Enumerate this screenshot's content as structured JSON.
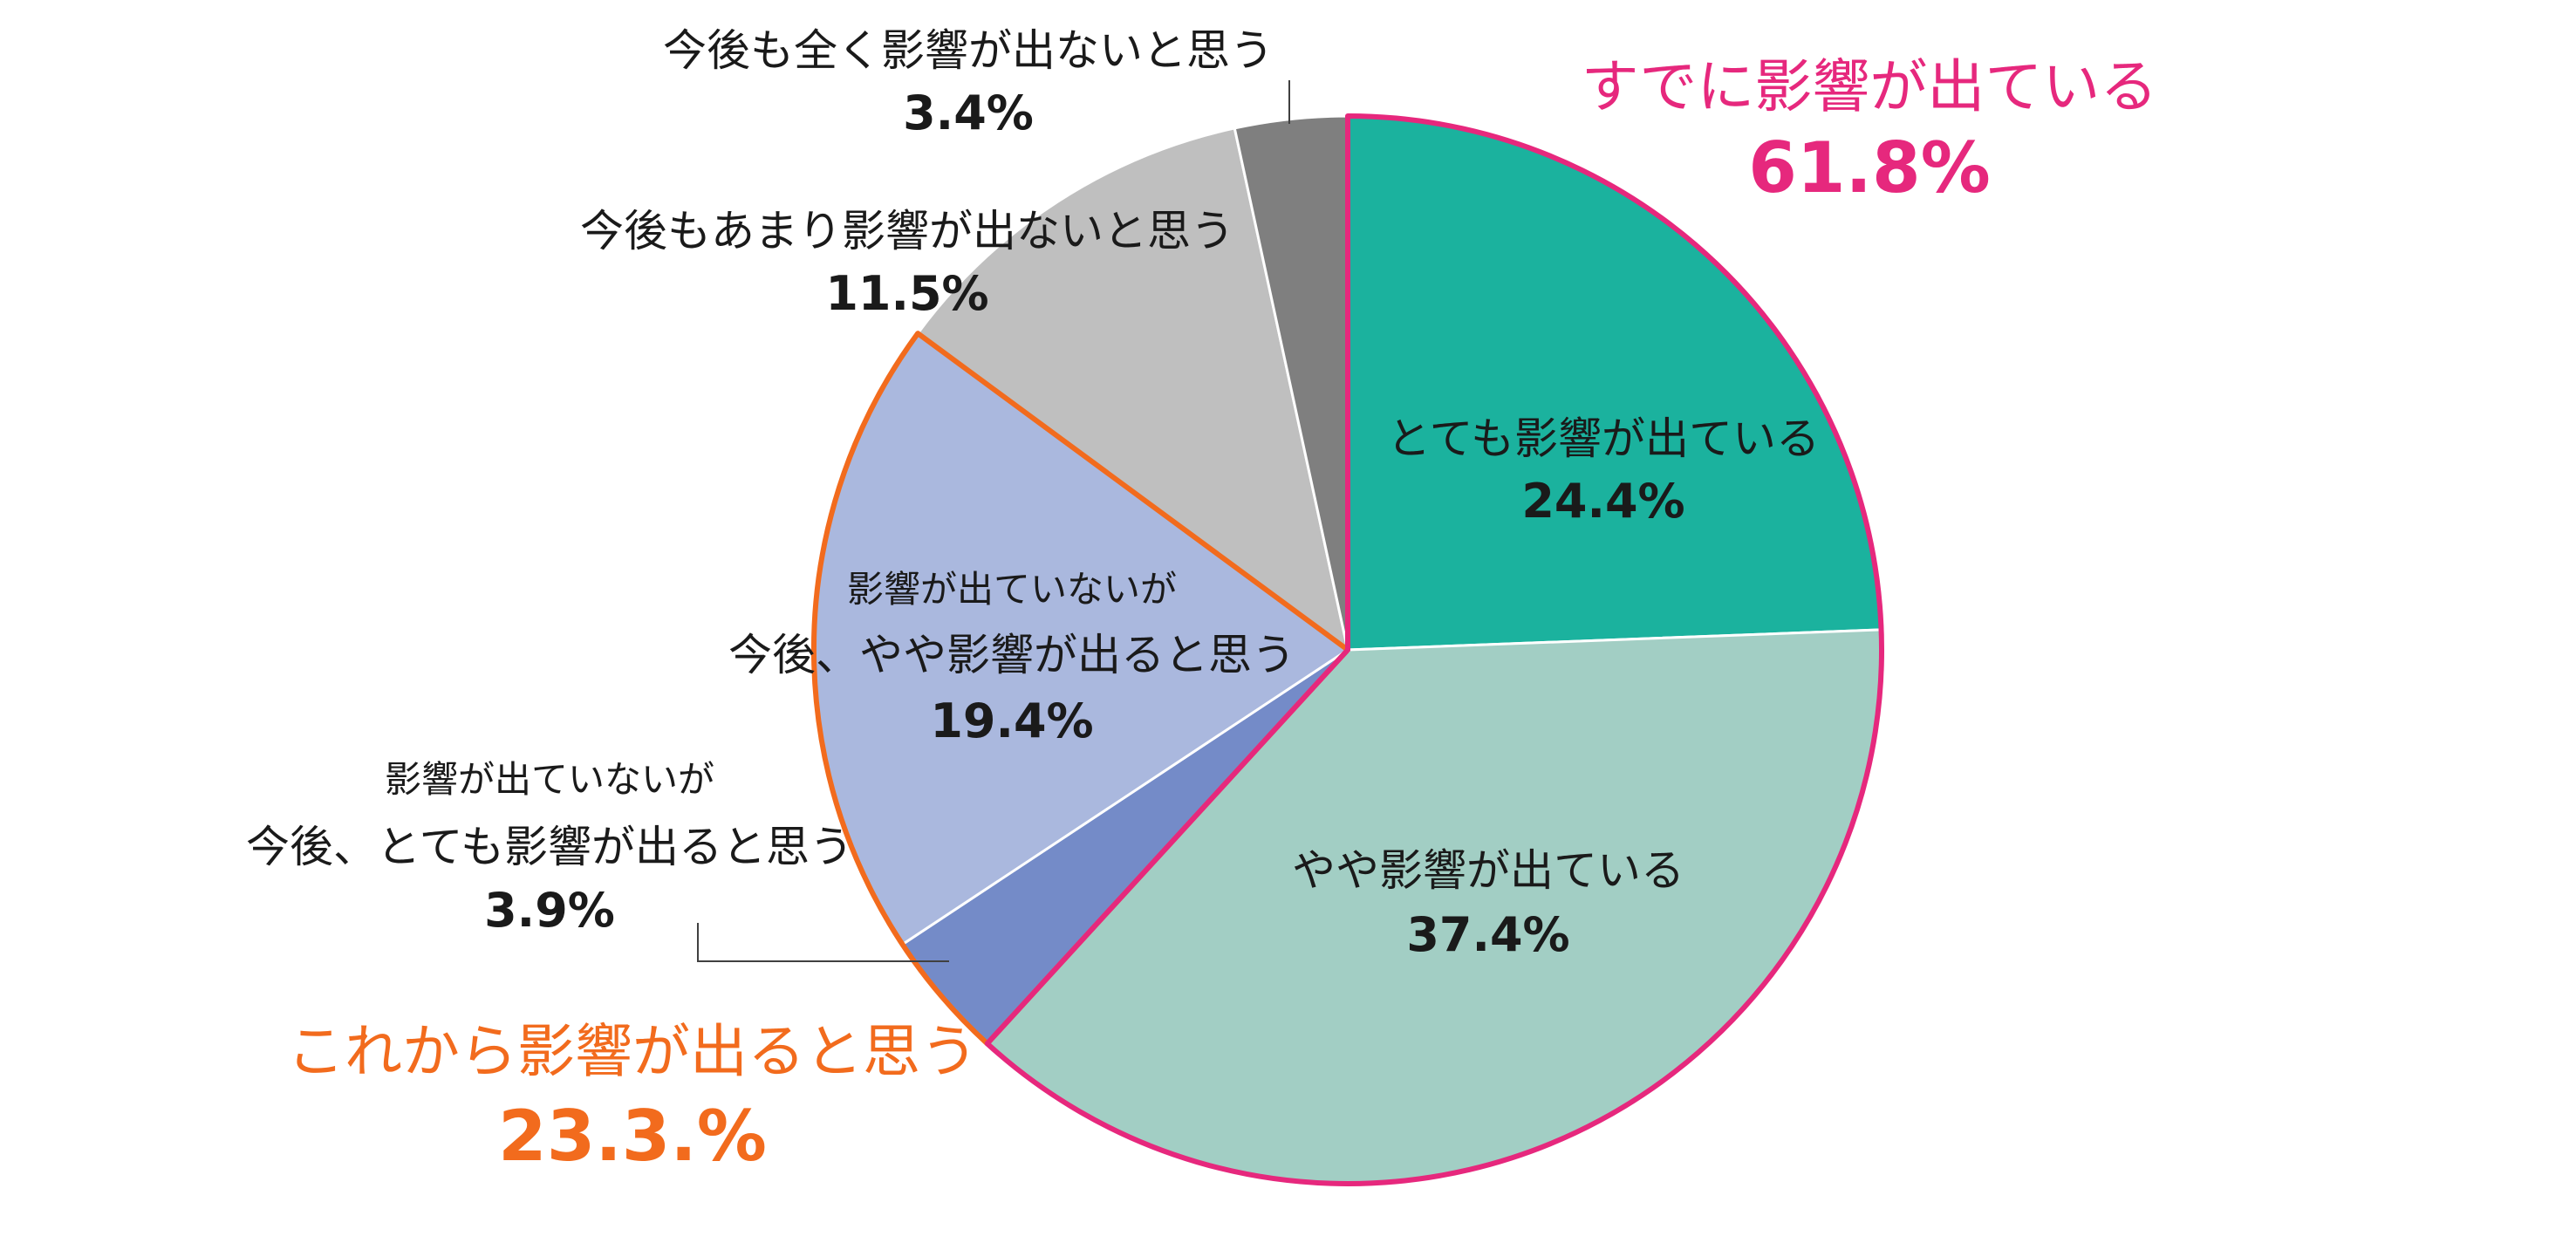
{
  "chart_data": {
    "type": "pie",
    "slices": [
      {
        "label_lines": [
          "とても影響が出ている"
        ],
        "value_text": "24.4%",
        "value": 24.4,
        "color": "#1BB29E"
      },
      {
        "label_lines": [
          "やや影響が出ている"
        ],
        "value_text": "37.4%",
        "value": 37.4,
        "color": "#A2CEC4"
      },
      {
        "label_lines": [
          "影響が出ていないが",
          "今後、とても影響が出ると思う"
        ],
        "value_text": "3.9%",
        "value": 3.9,
        "color": "#748BC8"
      },
      {
        "label_lines": [
          "影響が出ていないが",
          "今後、やや影響が出ると思う"
        ],
        "value_text": "19.4%",
        "value": 19.4,
        "color": "#AAB8DE"
      },
      {
        "label_lines": [
          "今後もあまり影響が出ないと思う"
        ],
        "value_text": "11.5%",
        "value": 11.5,
        "color": "#BFBFBF"
      },
      {
        "label_lines": [
          "今後も全く影響が出ないと思う"
        ],
        "value_text": "3.4%",
        "value": 3.4,
        "color": "#7F7F7F"
      }
    ],
    "groups": [
      {
        "label": "すでに影響が出ている",
        "value_text": "61.8%",
        "value": 61.8,
        "color": "#E6287D"
      },
      {
        "label": "これから影響が出ると思う",
        "value_text": "23.3.%",
        "value": 23.3,
        "color": "#F26B1D"
      }
    ],
    "start_angle_deg": 0,
    "direction": "clockwise",
    "legend": "none"
  }
}
